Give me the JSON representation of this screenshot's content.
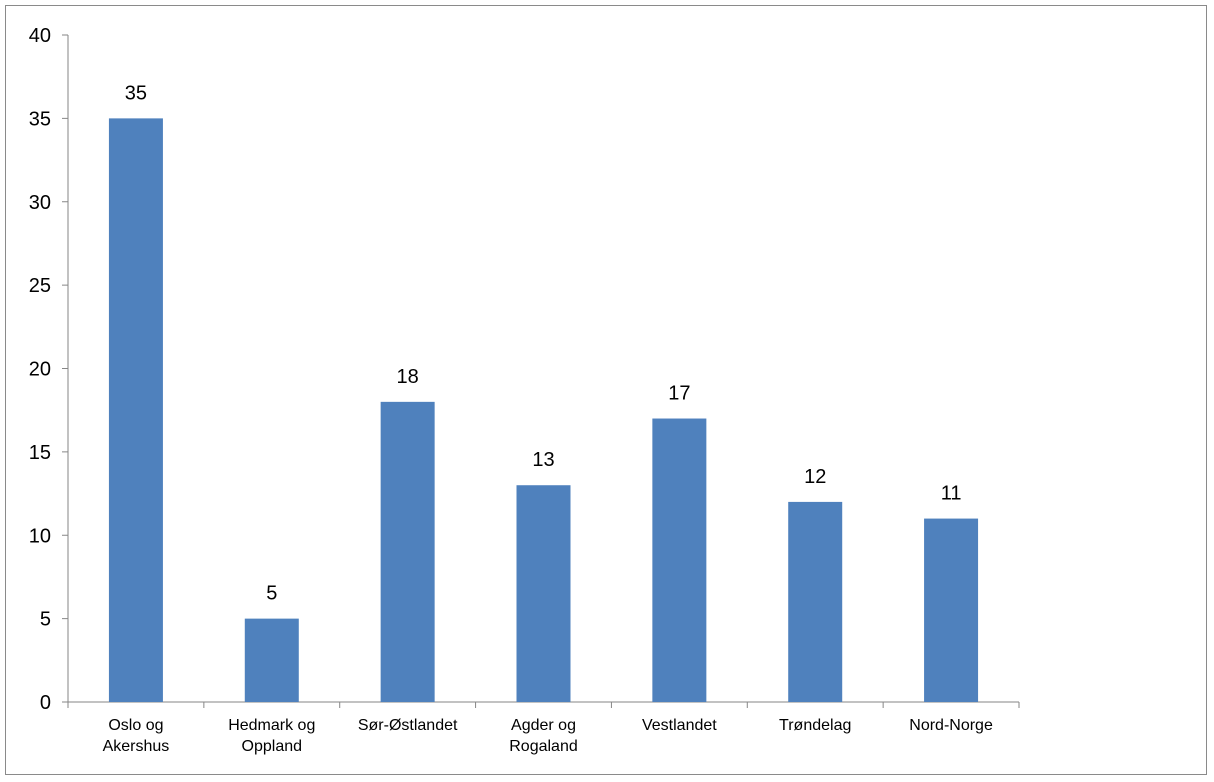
{
  "chart_data": {
    "type": "bar",
    "categories": [
      [
        "Oslo og",
        "Akershus"
      ],
      [
        "Hedmark og",
        "Oppland"
      ],
      [
        "Sør-Østlandet"
      ],
      [
        "Agder og",
        "Rogaland"
      ],
      [
        "Vestlandet"
      ],
      [
        "Trøndelag"
      ],
      [
        "Nord-Norge"
      ]
    ],
    "values": [
      35,
      5,
      18,
      13,
      17,
      12,
      11
    ],
    "data_labels": [
      "35",
      "5",
      "18",
      "13",
      "17",
      "12",
      "11"
    ],
    "y_ticks": [
      0,
      5,
      10,
      15,
      20,
      25,
      30,
      35,
      40
    ],
    "ylim": [
      0,
      40
    ],
    "bar_color": "#4f81bd",
    "axis_color": "#868686",
    "grid": false,
    "legend": "none"
  }
}
